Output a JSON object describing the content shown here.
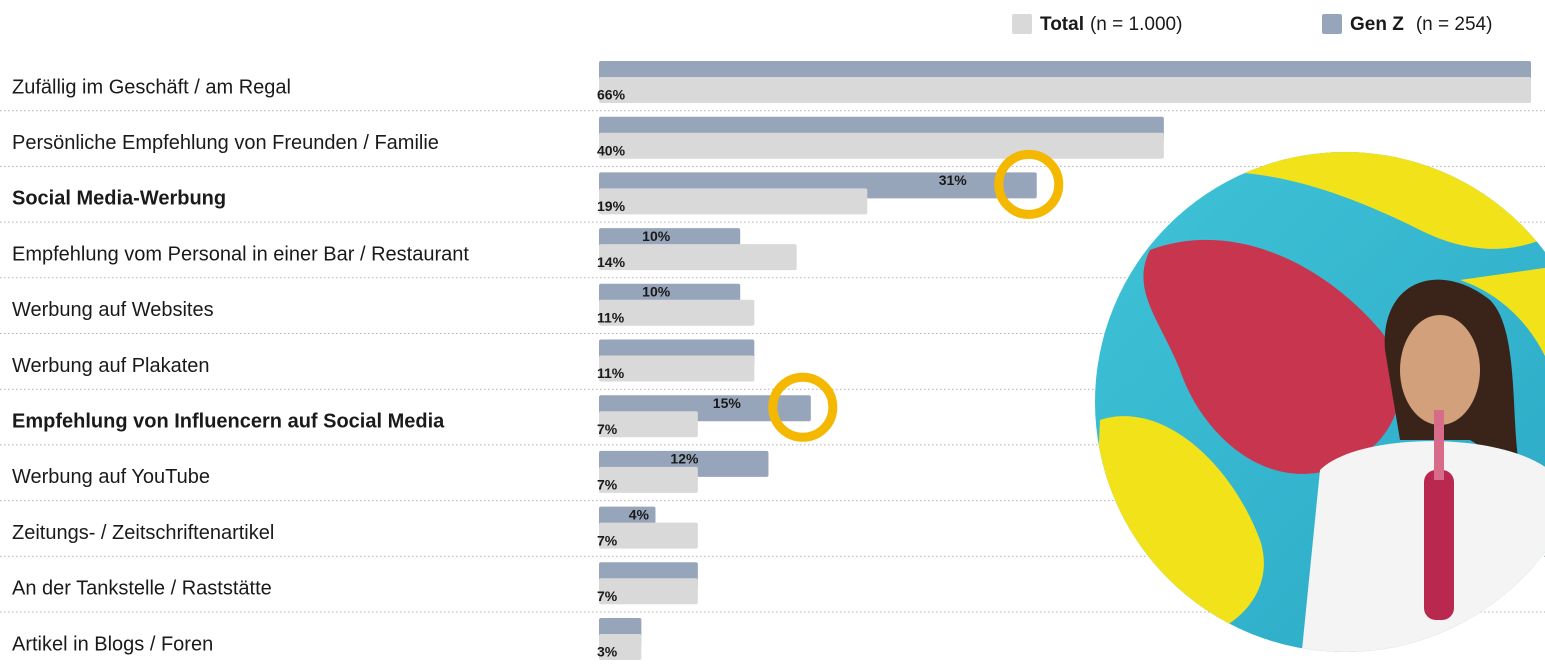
{
  "chart_data": {
    "type": "bar",
    "orientation": "horizontal",
    "categories": [
      "Zufällig im Geschäft / am Regal",
      "Persönliche Empfehlung von Freunden / Familie",
      "Social Media-Werbung",
      "Empfehlung vom Personal in einer Bar / Restaurant",
      "Werbung auf Websites",
      "Werbung auf Plakaten",
      "Empfehlung von Influencern auf Social Media",
      "Werbung auf YouTube",
      "Zeitungs- / Zeitschriftenartikel",
      "An der Tankstelle / Raststätte",
      "Artikel in Blogs / Foren"
    ],
    "highlighted": [
      2,
      6
    ],
    "series": [
      {
        "name": "Total",
        "sample": "(n = 1.000)",
        "color": "#d9d9d9",
        "values": [
          66,
          40,
          19,
          14,
          11,
          11,
          7,
          7,
          7,
          7,
          3
        ],
        "value_labels": [
          "66%",
          "40%",
          "19%",
          "14%",
          "11%",
          "11%",
          "7%",
          "7%",
          "7%",
          "7%",
          "3%"
        ]
      },
      {
        "name": "Gen Z",
        "sample": "(n = 254)",
        "color": "#97a5bb",
        "values": [
          66,
          40,
          31,
          10,
          10,
          11,
          15,
          12,
          4,
          7,
          3
        ],
        "value_labels": [
          null,
          null,
          "31%",
          "10%",
          "10%",
          null,
          "15%",
          "12%",
          "4%",
          null,
          null
        ]
      }
    ],
    "xlim": [
      0,
      66
    ],
    "highlight_color": "#f5b800"
  }
}
